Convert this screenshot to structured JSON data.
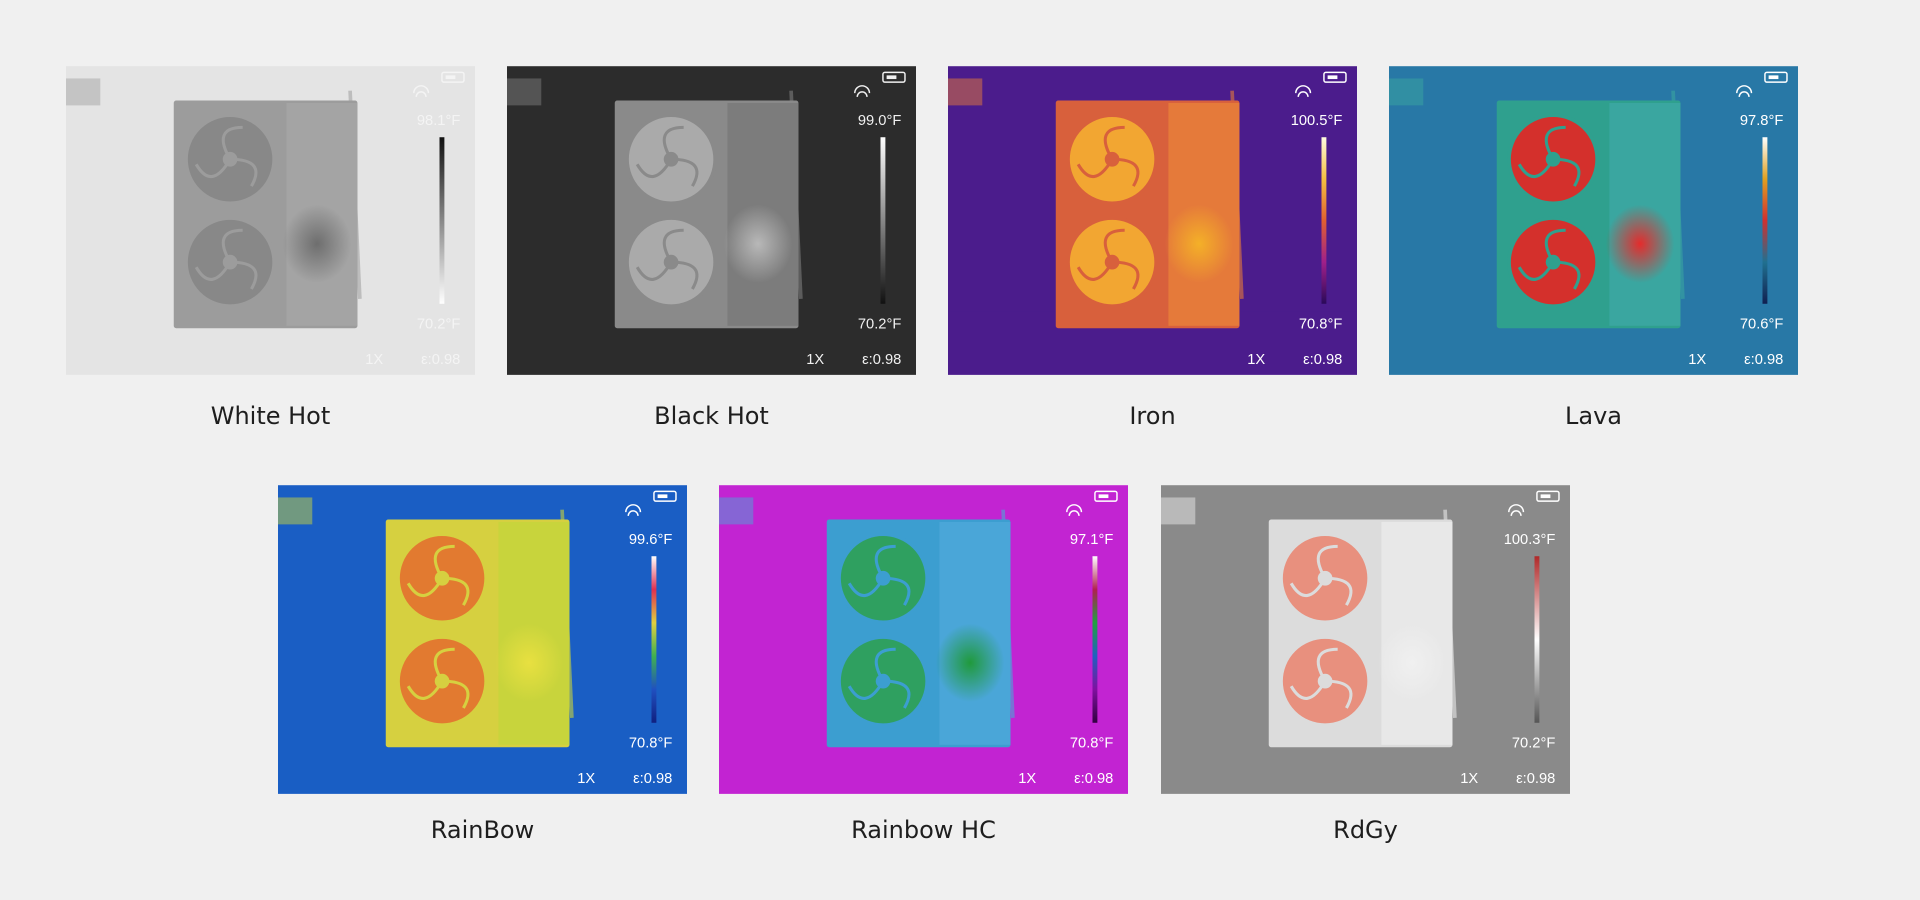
{
  "panels": [
    {
      "label": "White Hot",
      "max": "98.1°F",
      "min": "70.2°F",
      "zoom": "1X",
      "emissivity": "ε:0.98"
    },
    {
      "label": "Black Hot",
      "max": "99.0°F",
      "min": "70.2°F",
      "zoom": "1X",
      "emissivity": "ε:0.98"
    },
    {
      "label": "Iron",
      "max": "100.5°F",
      "min": "70.8°F",
      "zoom": "1X",
      "emissivity": "ε:0.98"
    },
    {
      "label": "Lava",
      "max": "97.8°F",
      "min": "70.6°F",
      "zoom": "1X",
      "emissivity": "ε:0.98"
    },
    {
      "label": "RainBow",
      "max": "99.6°F",
      "min": "70.8°F",
      "zoom": "1X",
      "emissivity": "ε:0.98"
    },
    {
      "label": "Rainbow HC",
      "max": "97.1°F",
      "min": "70.8°F",
      "zoom": "1X",
      "emissivity": "ε:0.98"
    },
    {
      "label": "RdGy",
      "max": "100.3°F",
      "min": "70.2°F",
      "zoom": "1X",
      "emissivity": "ε:0.98"
    }
  ]
}
